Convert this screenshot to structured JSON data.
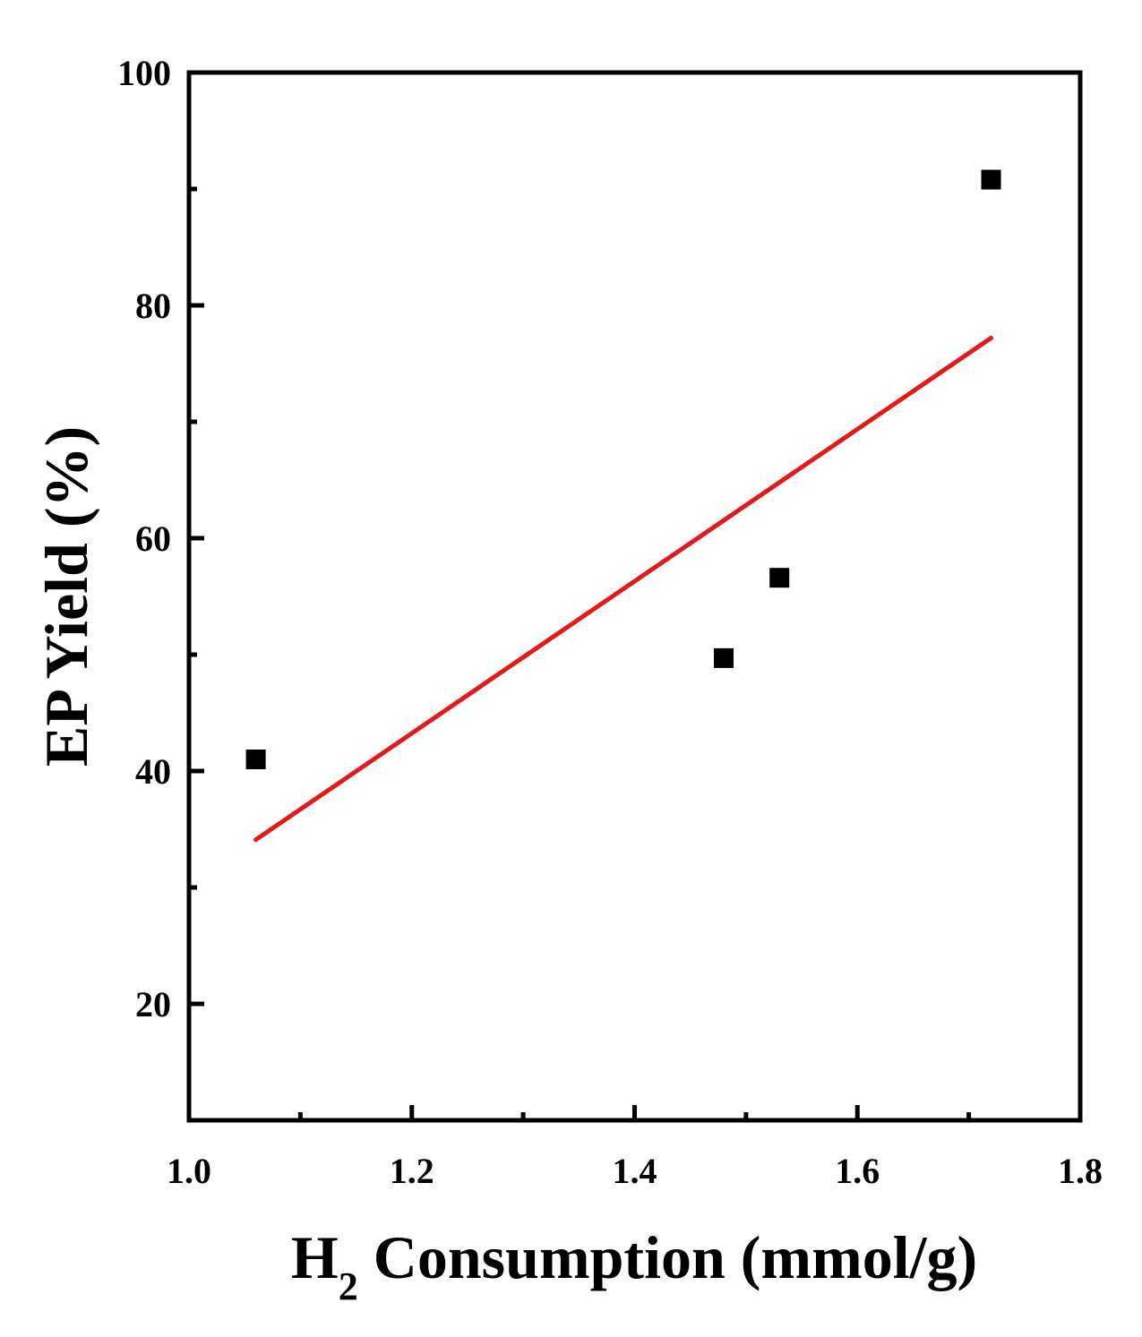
{
  "chart_data": {
    "type": "scatter",
    "xlabel": {
      "main": "H",
      "subscript": "2",
      "rest": " Consumption (mmol/g)"
    },
    "ylabel": "EP Yield (%)",
    "xlim": [
      1.0,
      1.8
    ],
    "ylim": [
      10,
      100
    ],
    "x_ticks": [
      1.0,
      1.2,
      1.4,
      1.6,
      1.8
    ],
    "x_tick_labels": [
      "1.0",
      "1.2",
      "1.4",
      "1.6",
      "1.8"
    ],
    "x_minor_ticks": [
      1.1,
      1.3,
      1.5,
      1.7
    ],
    "y_ticks": [
      20,
      40,
      60,
      80,
      100
    ],
    "y_tick_labels": [
      "20",
      "40",
      "60",
      "80",
      "100"
    ],
    "y_minor_ticks": [
      30,
      50,
      70,
      90
    ],
    "grid": false,
    "points": [
      {
        "x": 1.06,
        "y": 41.0
      },
      {
        "x": 1.48,
        "y": 49.7
      },
      {
        "x": 1.53,
        "y": 56.6
      },
      {
        "x": 1.72,
        "y": 90.8
      }
    ],
    "fit_line": {
      "x": [
        1.06,
        1.72
      ],
      "y": [
        34.1,
        77.2
      ]
    },
    "colors": {
      "points": "#000000",
      "fit_line": "#e31a1c",
      "axes": "#000000"
    }
  }
}
